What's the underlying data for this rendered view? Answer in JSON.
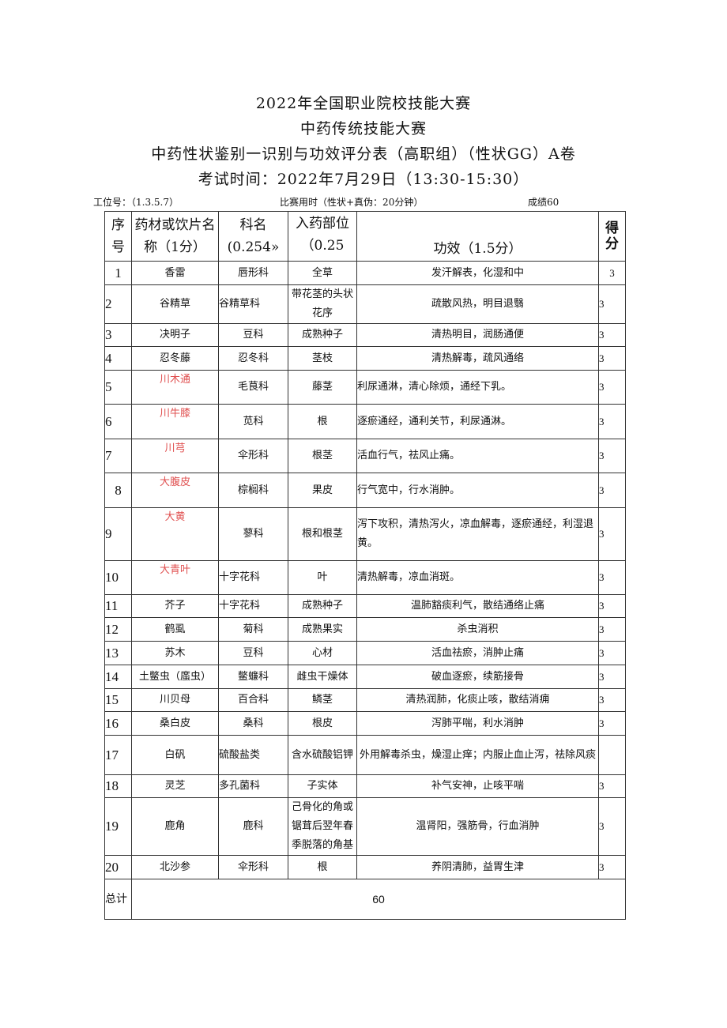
{
  "titles": [
    "2022年全国职业院校技能大赛",
    "中药传统技能大赛",
    "中药性状鉴别一识别与功效评分表（高职组）（性状GG）A卷",
    "考试时间：2022年7月29日（13:30-15:30）"
  ],
  "meta": {
    "station": "工位号：（1.3.5.7）",
    "time": "比赛用时（性状+真伪：20分钟）",
    "score": "成绩60"
  },
  "headers": {
    "no": "序号",
    "name": "药材或饮片名称（1分）",
    "family": "科名(0.254»",
    "part": "入药部位（0.25",
    "efficacy": "功效（1.5分）",
    "score": "得分"
  },
  "rows": [
    {
      "no": "1",
      "name": "香雷",
      "family": "唇形科",
      "part": "全草",
      "efficacy": "发汗解表，化湿和中",
      "score": "3"
    },
    {
      "no": "2",
      "name": "谷精草",
      "family": "谷精草科",
      "part": "带花茎的头状花序",
      "efficacy": "疏散风热，明目退翳",
      "score": "3"
    },
    {
      "no": "3",
      "name": "决明子",
      "family": "豆科",
      "part": "成熟种子",
      "efficacy": "清热明目，润肠通便",
      "score": "3"
    },
    {
      "no": "4",
      "name": "忍冬藤",
      "family": "忍冬科",
      "part": "茎枝",
      "efficacy": "清热解毒，疏风通络",
      "score": "3"
    },
    {
      "no": "5",
      "name": "川木通",
      "family": "毛茛科",
      "part": "藤茎",
      "efficacy": "利尿通淋，清心除烦，通经下乳。",
      "score": "3"
    },
    {
      "no": "6",
      "name": "川牛膝",
      "family": "苋科",
      "part": "根",
      "efficacy": "逐瘀通经，通利关节，利尿通淋。",
      "score": "3"
    },
    {
      "no": "7",
      "name": "川芎",
      "family": "伞形科",
      "part": "根茎",
      "efficacy": "活血行气，祛风止痛。",
      "score": "3"
    },
    {
      "no": "8",
      "name": "大腹皮",
      "family": "棕榈科",
      "part": "果皮",
      "efficacy": "行气宽中，行水消肿。",
      "score": "3"
    },
    {
      "no": "9",
      "name": "大黄",
      "family": "蓼科",
      "part": "根和根茎",
      "efficacy": "泻下攻积，清热泻火，凉血解毒，逐瘀通经，利湿退黄。",
      "score": "3"
    },
    {
      "no": "10",
      "name": "大青叶",
      "family": "十字花科",
      "part": "叶",
      "efficacy": "清热解毒，凉血消斑。",
      "score": "3"
    },
    {
      "no": "11",
      "name": "芥子",
      "family": "十字花科",
      "part": "成熟种子",
      "efficacy": "温肺豁痰利气，散结通络止痛",
      "score": "3"
    },
    {
      "no": "12",
      "name": "鹤虱",
      "family": "菊科",
      "part": "成熟果实",
      "efficacy": "杀虫消积",
      "score": "3"
    },
    {
      "no": "13",
      "name": "苏木",
      "family": "豆科",
      "part": "心材",
      "efficacy": "活血祛瘀，消肿止痛",
      "score": "3"
    },
    {
      "no": "14",
      "name": "土鳖虫（䗪虫）",
      "family": "鳖蠊科",
      "part": "雌虫干燥体",
      "efficacy": "破血逐瘀，续筋接骨",
      "score": "3"
    },
    {
      "no": "15",
      "name": "川贝母",
      "family": "百合科",
      "part": "鳞茎",
      "efficacy": "清热润肺，化痰止咳，散结消痈",
      "score": "3"
    },
    {
      "no": "16",
      "name": "桑白皮",
      "family": "桑科",
      "part": "根皮",
      "efficacy": "泻肺平喘，利水消肿",
      "score": "3"
    },
    {
      "no": "17",
      "name": "白矾",
      "family": "硫酸盐类",
      "part": "含水硫酸铝钾",
      "efficacy": "外用解毒杀虫，燥湿止痒；内服止血止泻，祛除风痰",
      "score": ""
    },
    {
      "no": "18",
      "name": "灵芝",
      "family": "多孔菌科",
      "part": "子实体",
      "efficacy": "补气安神，止咳平喘",
      "score": "3"
    },
    {
      "no": "19",
      "name": "鹿角",
      "family": "鹿科",
      "part": "己骨化的角或锯茸后翌年春季脱落的角基",
      "efficacy": "温肾阳，强筋骨，行血消肿",
      "score": "3"
    },
    {
      "no": "20",
      "name": "北沙参",
      "family": "伞形科",
      "part": "根",
      "efficacy": "养阴清肺，益胃生津",
      "score": "3"
    }
  ],
  "total": {
    "label": "总计",
    "value": "60"
  },
  "colors": {
    "highlight_name": "#e05050"
  }
}
